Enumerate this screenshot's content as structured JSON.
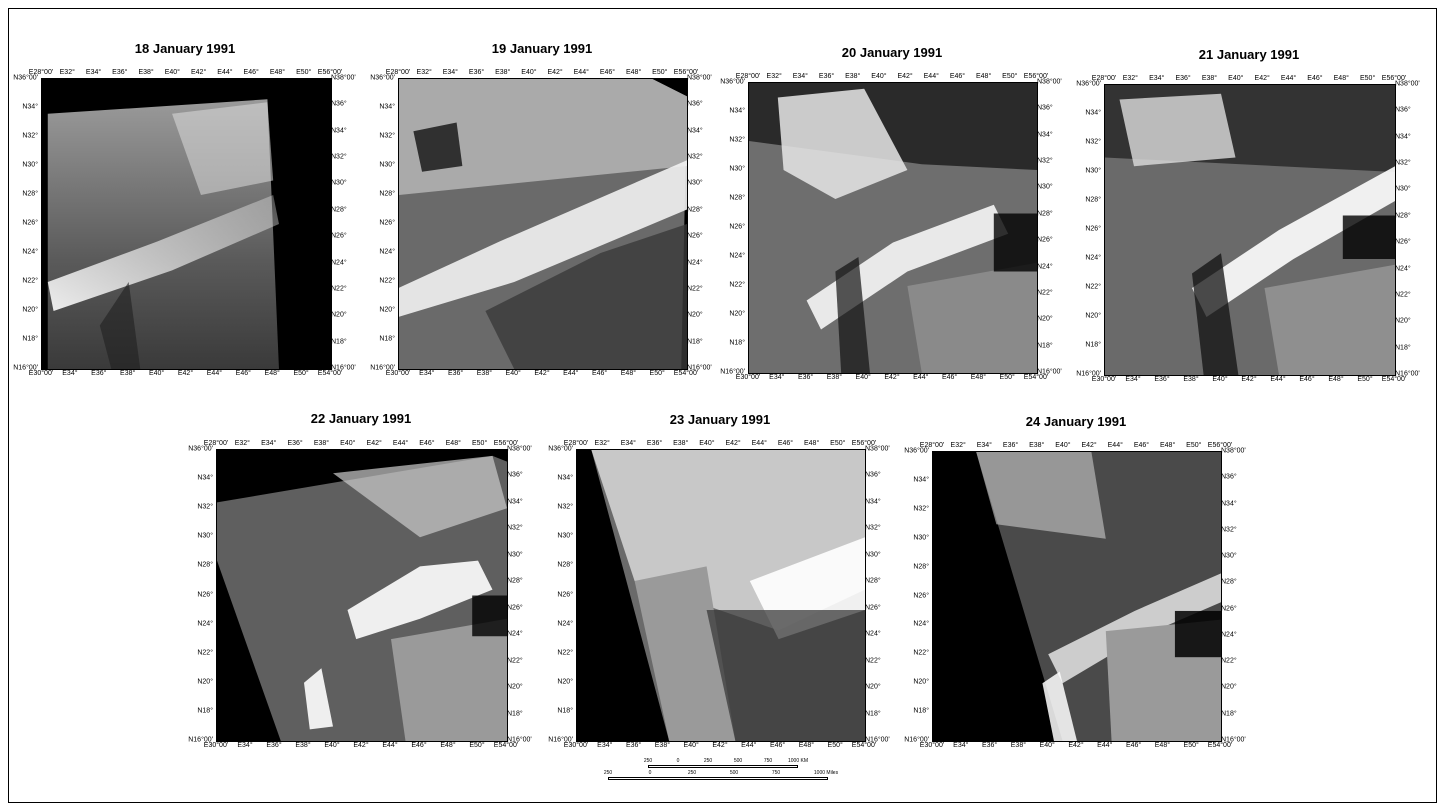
{
  "panels": [
    {
      "title": "18 January 1991",
      "top_ticks": [
        "E28°00'",
        "E32°",
        "E34°",
        "E36°",
        "E38°",
        "E40°",
        "E42°",
        "E44°",
        "E46°",
        "E48°",
        "E50°",
        "E56°00'"
      ],
      "bottom_ticks": [
        "E30°00'",
        "E34°",
        "E36°",
        "E38°",
        "E40°",
        "E42°",
        "E44°",
        "E46°",
        "E48°",
        "E50°",
        "E54°00'"
      ],
      "left_ticks": [
        "N36°00'",
        "N34°",
        "N32°",
        "N30°",
        "N28°",
        "N26°",
        "N24°",
        "N22°",
        "N20°",
        "N18°",
        "N16°00'"
      ],
      "right_ticks": [
        "N38°00'",
        "N36°",
        "N34°",
        "N32°",
        "N30°",
        "N28°",
        "N26°",
        "N24°",
        "N22°",
        "N20°",
        "N18°",
        "N16°00'"
      ]
    },
    {
      "title": "19 January 1991",
      "top_ticks": [
        "E28°00'",
        "E32°",
        "E34°",
        "E36°",
        "E38°",
        "E40°",
        "E42°",
        "E44°",
        "E46°",
        "E48°",
        "E50°",
        "E56°00'"
      ],
      "bottom_ticks": [
        "E30°00'",
        "E34°",
        "E36°",
        "E38°",
        "E40°",
        "E42°",
        "E44°",
        "E46°",
        "E48°",
        "E50°",
        "E54°00'"
      ],
      "left_ticks": [
        "N36°00'",
        "N34°",
        "N32°",
        "N30°",
        "N28°",
        "N26°",
        "N24°",
        "N22°",
        "N20°",
        "N18°",
        "N16°00'"
      ],
      "right_ticks": [
        "N38°00'",
        "N36°",
        "N34°",
        "N32°",
        "N30°",
        "N28°",
        "N26°",
        "N24°",
        "N22°",
        "N20°",
        "N18°",
        "N16°00'"
      ]
    },
    {
      "title": "20 January 1991",
      "top_ticks": [
        "E28°00'",
        "E32°",
        "E34°",
        "E36°",
        "E38°",
        "E40°",
        "E42°",
        "E44°",
        "E46°",
        "E48°",
        "E50°",
        "E56°00'"
      ],
      "bottom_ticks": [
        "E30°00'",
        "E34°",
        "E36°",
        "E38°",
        "E40°",
        "E42°",
        "E44°",
        "E46°",
        "E48°",
        "E50°",
        "E54°00'"
      ],
      "left_ticks": [
        "N36°00'",
        "N34°",
        "N32°",
        "N30°",
        "N28°",
        "N26°",
        "N24°",
        "N22°",
        "N20°",
        "N18°",
        "N16°00'"
      ],
      "right_ticks": [
        "N38°00'",
        "N36°",
        "N34°",
        "N32°",
        "N30°",
        "N28°",
        "N26°",
        "N24°",
        "N22°",
        "N20°",
        "N18°",
        "N16°00'"
      ]
    },
    {
      "title": "21 January 1991",
      "top_ticks": [
        "E28°00'",
        "E32°",
        "E34°",
        "E36°",
        "E38°",
        "E40°",
        "E42°",
        "E44°",
        "E46°",
        "E48°",
        "E50°",
        "E56°00'"
      ],
      "bottom_ticks": [
        "E30°00'",
        "E34°",
        "E36°",
        "E38°",
        "E40°",
        "E42°",
        "E44°",
        "E46°",
        "E48°",
        "E50°",
        "E54°00'"
      ],
      "left_ticks": [
        "N36°00'",
        "N34°",
        "N32°",
        "N30°",
        "N28°",
        "N26°",
        "N24°",
        "N22°",
        "N20°",
        "N18°",
        "N16°00'"
      ],
      "right_ticks": [
        "N38°00'",
        "N36°",
        "N34°",
        "N32°",
        "N30°",
        "N28°",
        "N26°",
        "N24°",
        "N22°",
        "N20°",
        "N18°",
        "N16°00'"
      ]
    },
    {
      "title": "22 January 1991",
      "top_ticks": [
        "E28°00'",
        "E32°",
        "E34°",
        "E36°",
        "E38°",
        "E40°",
        "E42°",
        "E44°",
        "E46°",
        "E48°",
        "E50°",
        "E56°00'"
      ],
      "bottom_ticks": [
        "E30°00'",
        "E34°",
        "E36°",
        "E38°",
        "E40°",
        "E42°",
        "E44°",
        "E46°",
        "E48°",
        "E50°",
        "E54°00'"
      ],
      "left_ticks": [
        "N36°00'",
        "N34°",
        "N32°",
        "N30°",
        "N28°",
        "N26°",
        "N24°",
        "N22°",
        "N20°",
        "N18°",
        "N16°00'"
      ],
      "right_ticks": [
        "N38°00'",
        "N36°",
        "N34°",
        "N32°",
        "N30°",
        "N28°",
        "N26°",
        "N24°",
        "N22°",
        "N20°",
        "N18°",
        "N16°00'"
      ]
    },
    {
      "title": "23 January 1991",
      "top_ticks": [
        "E28°00'",
        "E32°",
        "E34°",
        "E36°",
        "E38°",
        "E40°",
        "E42°",
        "E44°",
        "E46°",
        "E48°",
        "E50°",
        "E56°00'"
      ],
      "bottom_ticks": [
        "E30°00'",
        "E34°",
        "E36°",
        "E38°",
        "E40°",
        "E42°",
        "E44°",
        "E46°",
        "E48°",
        "E50°",
        "E54°00'"
      ],
      "left_ticks": [
        "N36°00'",
        "N34°",
        "N32°",
        "N30°",
        "N28°",
        "N26°",
        "N24°",
        "N22°",
        "N20°",
        "N18°",
        "N16°00'"
      ],
      "right_ticks": [
        "N38°00'",
        "N36°",
        "N34°",
        "N32°",
        "N30°",
        "N28°",
        "N26°",
        "N24°",
        "N22°",
        "N20°",
        "N18°",
        "N16°00'"
      ]
    },
    {
      "title": "24 January 1991",
      "top_ticks": [
        "E28°00'",
        "E32°",
        "E34°",
        "E36°",
        "E38°",
        "E40°",
        "E42°",
        "E44°",
        "E46°",
        "E48°",
        "E50°",
        "E56°00'"
      ],
      "bottom_ticks": [
        "E30°00'",
        "E34°",
        "E36°",
        "E38°",
        "E40°",
        "E42°",
        "E44°",
        "E46°",
        "E48°",
        "E50°",
        "E54°00'"
      ],
      "left_ticks": [
        "N36°00'",
        "N34°",
        "N32°",
        "N30°",
        "N28°",
        "N26°",
        "N24°",
        "N22°",
        "N20°",
        "N18°",
        "N16°00'"
      ],
      "right_ticks": [
        "N38°00'",
        "N36°",
        "N34°",
        "N32°",
        "N30°",
        "N28°",
        "N26°",
        "N24°",
        "N22°",
        "N20°",
        "N18°",
        "N16°00'"
      ]
    }
  ],
  "scale": {
    "km_labels": [
      "250",
      "0",
      "250",
      "500",
      "750",
      "1000 KM"
    ],
    "mile_labels": [
      "250",
      "0",
      "250",
      "500",
      "750",
      "1000 Miles"
    ]
  }
}
